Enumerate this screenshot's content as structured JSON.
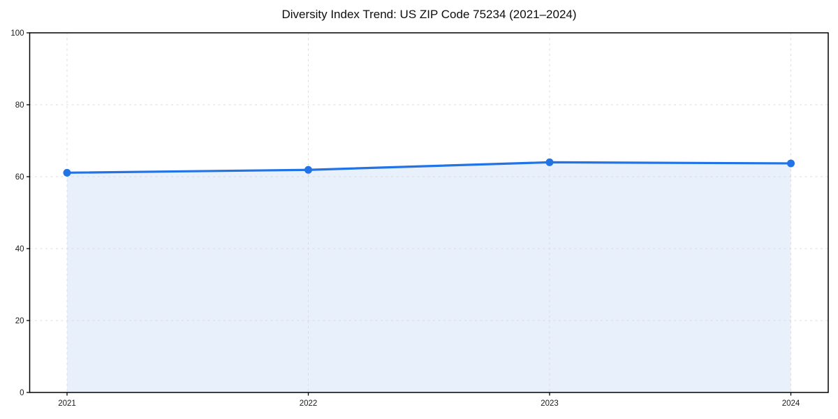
{
  "chart_data": {
    "type": "area",
    "title": "Diversity Index Trend: US ZIP Code 75234 (2021–2024)",
    "categories": [
      "2021",
      "2022",
      "2023",
      "2024"
    ],
    "series": [
      {
        "name": "Diversity Index",
        "values": [
          61.1,
          61.9,
          64.0,
          63.7
        ]
      }
    ],
    "xlabel": "",
    "ylabel": "",
    "ylim": [
      0,
      100
    ],
    "yticks": [
      0,
      20,
      40,
      60,
      80,
      100
    ],
    "grid": "dashed-both-axes",
    "legend": "none",
    "marker": "circle",
    "colors": {
      "line": "#2273e6",
      "fill": "#e8f0fc",
      "grid": "#dcdcdc",
      "axis": "#000000",
      "text": "#1a1a1a"
    }
  }
}
